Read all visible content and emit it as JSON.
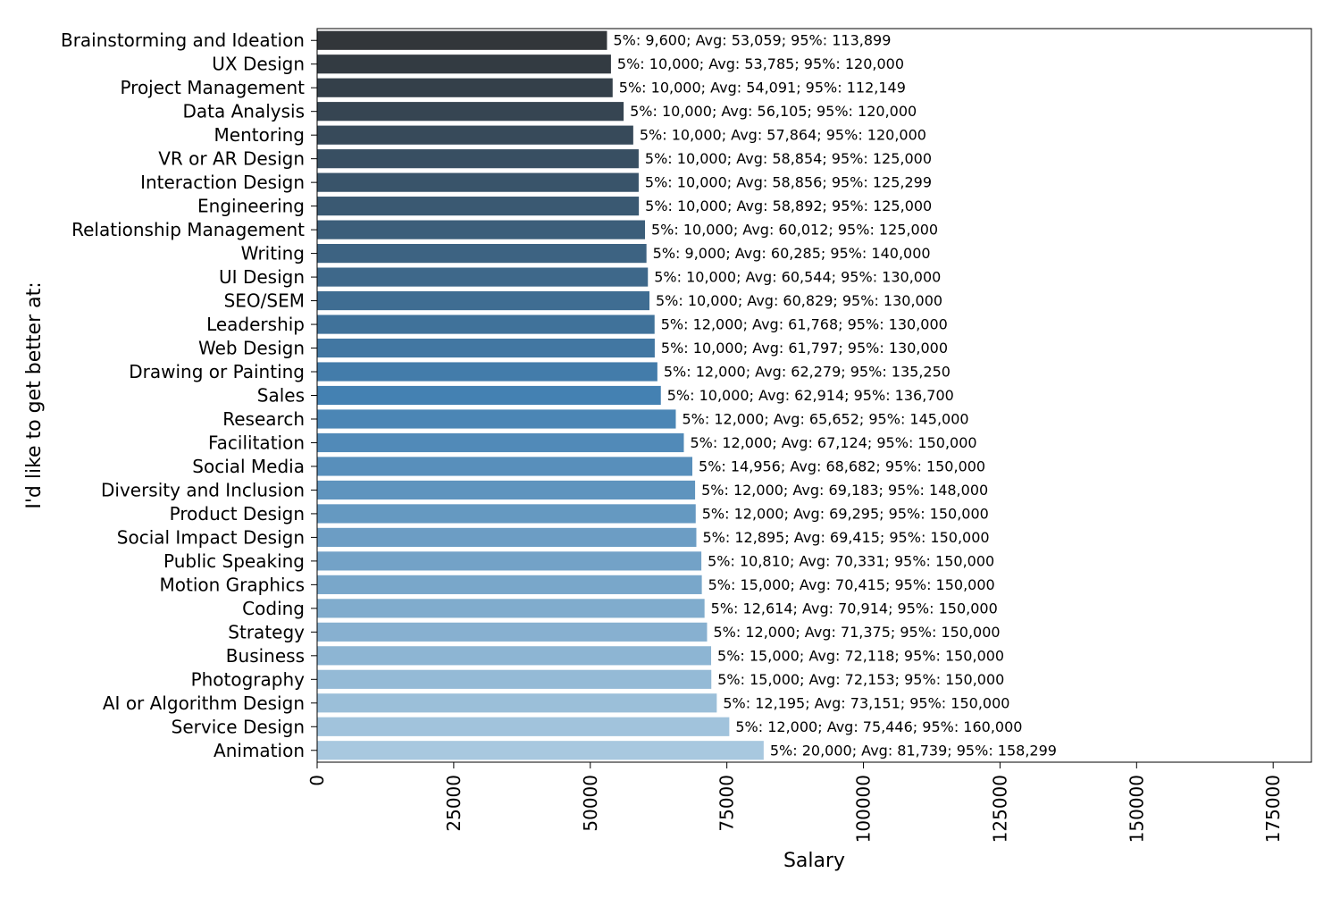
{
  "chart_data": {
    "type": "bar",
    "orientation": "horizontal",
    "xlabel": "Salary",
    "ylabel": "I'd like to get better at:",
    "xlim": [
      0,
      182000
    ],
    "xticks": [
      0,
      25000,
      50000,
      75000,
      100000,
      125000,
      150000,
      175000
    ],
    "xtick_labels": [
      "0",
      "25000",
      "50000",
      "75000",
      "100000",
      "125000",
      "150000",
      "175000"
    ],
    "grid": false,
    "legend": "none",
    "palette": {
      "start": "#32363a",
      "mid": "#4481b2",
      "end": "#a8c8df"
    },
    "categories": [
      "Brainstorming and Ideation",
      "UX Design",
      "Project Management",
      "Data Analysis",
      "Mentoring",
      "VR or AR Design",
      "Interaction Design",
      "Engineering",
      "Relationship Management",
      "Writing",
      "UI Design",
      "SEO/SEM",
      "Leadership",
      "Web Design",
      "Drawing or Painting",
      "Sales",
      "Research",
      "Facilitation",
      "Social Media",
      "Diversity and Inclusion",
      "Product Design",
      "Social Impact Design",
      "Public Speaking",
      "Motion Graphics",
      "Coding",
      "Strategy",
      "Business",
      "Photography",
      "AI or Algorithm Design",
      "Service Design",
      "Animation"
    ],
    "values": [
      53059,
      53785,
      54091,
      56105,
      57864,
      58854,
      58856,
      58892,
      60012,
      60285,
      60544,
      60829,
      61768,
      61797,
      62279,
      62914,
      65652,
      67124,
      68682,
      69183,
      69295,
      69415,
      70331,
      70415,
      70914,
      71375,
      72118,
      72153,
      73151,
      75446,
      81739
    ],
    "data_labels": [
      "5%: 9,600; Avg: 53,059; 95%: 113,899",
      "5%: 10,000; Avg: 53,785; 95%: 120,000",
      "5%: 10,000; Avg: 54,091; 95%: 112,149",
      "5%: 10,000; Avg: 56,105; 95%: 120,000",
      "5%: 10,000; Avg: 57,864; 95%: 120,000",
      "5%: 10,000; Avg: 58,854; 95%: 125,000",
      "5%: 10,000; Avg: 58,856; 95%: 125,299",
      "5%: 10,000; Avg: 58,892; 95%: 125,000",
      "5%: 10,000; Avg: 60,012; 95%: 125,000",
      "5%: 9,000; Avg: 60,285; 95%: 140,000",
      "5%: 10,000; Avg: 60,544; 95%: 130,000",
      "5%: 10,000; Avg: 60,829; 95%: 130,000",
      "5%: 12,000; Avg: 61,768; 95%: 130,000",
      "5%: 10,000; Avg: 61,797; 95%: 130,000",
      "5%: 12,000; Avg: 62,279; 95%: 135,250",
      "5%: 10,000; Avg: 62,914; 95%: 136,700",
      "5%: 12,000; Avg: 65,652; 95%: 145,000",
      "5%: 12,000; Avg: 67,124; 95%: 150,000",
      "5%: 14,956; Avg: 68,682; 95%: 150,000",
      "5%: 12,000; Avg: 69,183; 95%: 148,000",
      "5%: 12,000; Avg: 69,295; 95%: 150,000",
      "5%: 12,895; Avg: 69,415; 95%: 150,000",
      "5%: 10,810; Avg: 70,331; 95%: 150,000",
      "5%: 15,000; Avg: 70,415; 95%: 150,000",
      "5%: 12,614; Avg: 70,914; 95%: 150,000",
      "5%: 12,000; Avg: 71,375; 95%: 150,000",
      "5%: 15,000; Avg: 72,118; 95%: 150,000",
      "5%: 15,000; Avg: 72,153; 95%: 150,000",
      "5%: 12,195; Avg: 73,151; 95%: 150,000",
      "5%: 12,000; Avg: 75,446; 95%: 160,000",
      "5%: 20,000; Avg: 81,739; 95%: 158,299"
    ]
  }
}
